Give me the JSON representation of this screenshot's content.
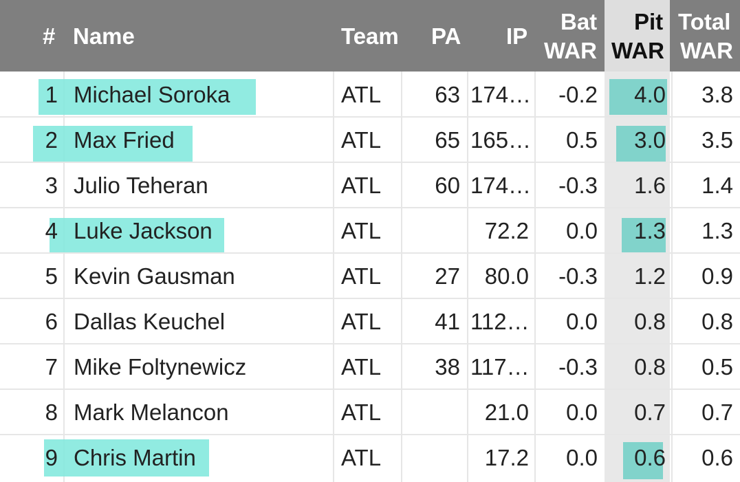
{
  "colors": {
    "header_bg": "#7f7f7f",
    "pit_header_bg": "#dedede",
    "pit_column_bg": "#e8e8e8",
    "highlight": "#7ee8dc"
  },
  "headers": {
    "rank": "#",
    "name": "Name",
    "team": "Team",
    "pa": "PA",
    "ip": "IP",
    "bat_war_1": "Bat",
    "bat_war_2": "WAR",
    "pit_war_1": "Pit",
    "pit_war_2": "WAR",
    "total_war_1": "Total",
    "total_war_2": "WAR"
  },
  "rows": [
    {
      "rank": "1",
      "name": "Michael Soroka",
      "team": "ATL",
      "pa": "63",
      "ip": "174…",
      "bat_war": "-0.2",
      "pit_war": "4.0",
      "total_war": "3.8",
      "name_highlighted": true,
      "pit_highlighted": true
    },
    {
      "rank": "2",
      "name": "Max Fried",
      "team": "ATL",
      "pa": "65",
      "ip": "165…",
      "bat_war": "0.5",
      "pit_war": "3.0",
      "total_war": "3.5",
      "name_highlighted": true,
      "pit_highlighted": true
    },
    {
      "rank": "3",
      "name": "Julio Teheran",
      "team": "ATL",
      "pa": "60",
      "ip": "174…",
      "bat_war": "-0.3",
      "pit_war": "1.6",
      "total_war": "1.4",
      "name_highlighted": false,
      "pit_highlighted": false
    },
    {
      "rank": "4",
      "name": "Luke Jackson",
      "team": "ATL",
      "pa": "",
      "ip": "72.2",
      "bat_war": "0.0",
      "pit_war": "1.3",
      "total_war": "1.3",
      "name_highlighted": true,
      "pit_highlighted": true
    },
    {
      "rank": "5",
      "name": "Kevin Gausman",
      "team": "ATL",
      "pa": "27",
      "ip": "80.0",
      "bat_war": "-0.3",
      "pit_war": "1.2",
      "total_war": "0.9",
      "name_highlighted": false,
      "pit_highlighted": false
    },
    {
      "rank": "6",
      "name": "Dallas Keuchel",
      "team": "ATL",
      "pa": "41",
      "ip": "112…",
      "bat_war": "0.0",
      "pit_war": "0.8",
      "total_war": "0.8",
      "name_highlighted": false,
      "pit_highlighted": false
    },
    {
      "rank": "7",
      "name": "Mike Foltynewicz",
      "team": "ATL",
      "pa": "38",
      "ip": "117…",
      "bat_war": "-0.3",
      "pit_war": "0.8",
      "total_war": "0.5",
      "name_highlighted": false,
      "pit_highlighted": false
    },
    {
      "rank": "8",
      "name": "Mark Melancon",
      "team": "ATL",
      "pa": "",
      "ip": "21.0",
      "bat_war": "0.0",
      "pit_war": "0.7",
      "total_war": "0.7",
      "name_highlighted": false,
      "pit_highlighted": false
    },
    {
      "rank": "9",
      "name": "Chris Martin",
      "team": "ATL",
      "pa": "",
      "ip": "17.2",
      "bat_war": "0.0",
      "pit_war": "0.6",
      "total_war": "0.6",
      "name_highlighted": true,
      "pit_highlighted": true
    }
  ]
}
